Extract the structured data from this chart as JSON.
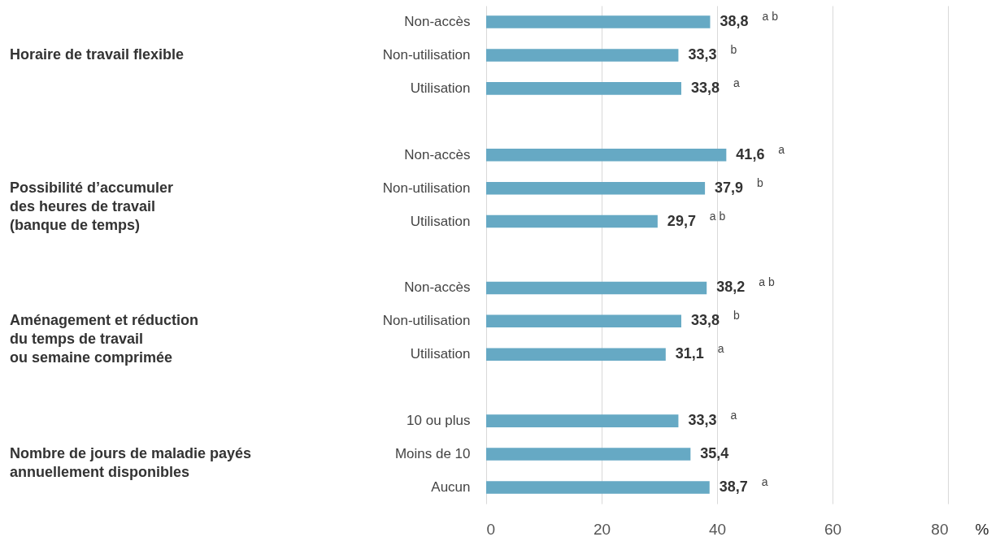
{
  "chart_data": {
    "type": "bar",
    "orientation": "horizontal",
    "categories": [
      "Non-accès",
      "Non-utilisation",
      "Utilisation",
      null,
      "Non-accès",
      "Non-utilisation",
      "Utilisation",
      null,
      "Non-accès",
      "Non-utilisation",
      "Utilisation",
      null,
      "10 ou plus",
      "Moins de 10",
      "Aucun"
    ],
    "values": [
      38.8,
      33.3,
      33.8,
      null,
      41.6,
      37.9,
      29.7,
      null,
      38.2,
      33.8,
      31.1,
      null,
      33.3,
      35.4,
      38.7
    ],
    "value_labels": [
      "38,8 $^{a b}$",
      "33,3 $^{b}$",
      "33,8 $^{a}$",
      null,
      "41,6 $^{a}$",
      "37,9 $^{b}$",
      "29,7 $^{a b}$",
      null,
      "38,2 $^{a b}$",
      "33,8 $^{b}$",
      "31,1 $^{a}$",
      null,
      "33,3 $^{a}$",
      "35,4",
      "38,7 $^{a}$"
    ],
    "color": "#66a9c4",
    "xlim": [
      0,
      80
    ],
    "xticks": [
      0,
      20,
      40,
      60,
      80
    ],
    "xlabel": "%",
    "grid": "x",
    "annotations": [
      "Horaire de travail flexible",
      "Possibilité d’accumuler\ndes heures de travail\n(banque de temps)",
      "Aménagement et réduction\ndu temps de travail\nou semaine comprimée",
      "Nombre de jours de maladie payés\nannuellement disponibles"
    ]
  }
}
